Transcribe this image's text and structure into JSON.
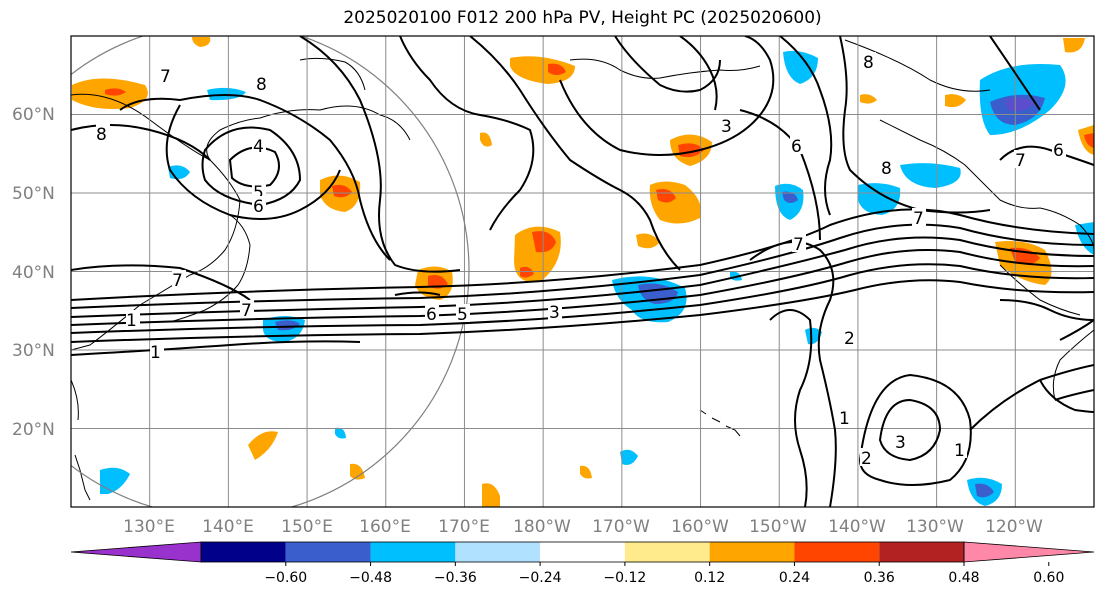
{
  "chart_data": {
    "type": "map",
    "title": "2025020100 F012 200 hPa PV, Height PC (2025020600)",
    "lat_ticks": [
      "60°N",
      "50°N",
      "40°N",
      "30°N",
      "20°N"
    ],
    "lon_ticks": [
      "130°E",
      "140°E",
      "150°E",
      "160°E",
      "170°E",
      "180°W",
      "170°W",
      "160°W",
      "150°W",
      "140°W",
      "130°W",
      "120°W"
    ],
    "lat_range": [
      10,
      70
    ],
    "lon_range": [
      120,
      250
    ],
    "grid": true,
    "colorbar": {
      "levels": [
        -0.6,
        -0.48,
        -0.36,
        -0.24,
        -0.12,
        0.12,
        0.24,
        0.36,
        0.48,
        0.6
      ],
      "tick_labels": [
        "−0.60",
        "−0.48",
        "−0.36",
        "−0.24",
        "−0.12",
        "0.12",
        "0.24",
        "0.36",
        "0.48",
        "0.60"
      ],
      "colors": [
        "#9932cc",
        "#00008b",
        "#3a5fcd",
        "#00bfff",
        "#b0e2ff",
        "#ffffff",
        "#ffea8c",
        "#ffa500",
        "#ff4500",
        "#b22222",
        "#ff88a8"
      ],
      "extend": "both"
    },
    "contour_labels": [
      "7",
      "8",
      "8",
      "4",
      "5",
      "6",
      "7",
      "7",
      "1",
      "1",
      "6",
      "5",
      "3",
      "3",
      "6",
      "7",
      "8",
      "7",
      "6",
      "2",
      "1",
      "2",
      "3",
      "1",
      "7",
      "8"
    ]
  }
}
